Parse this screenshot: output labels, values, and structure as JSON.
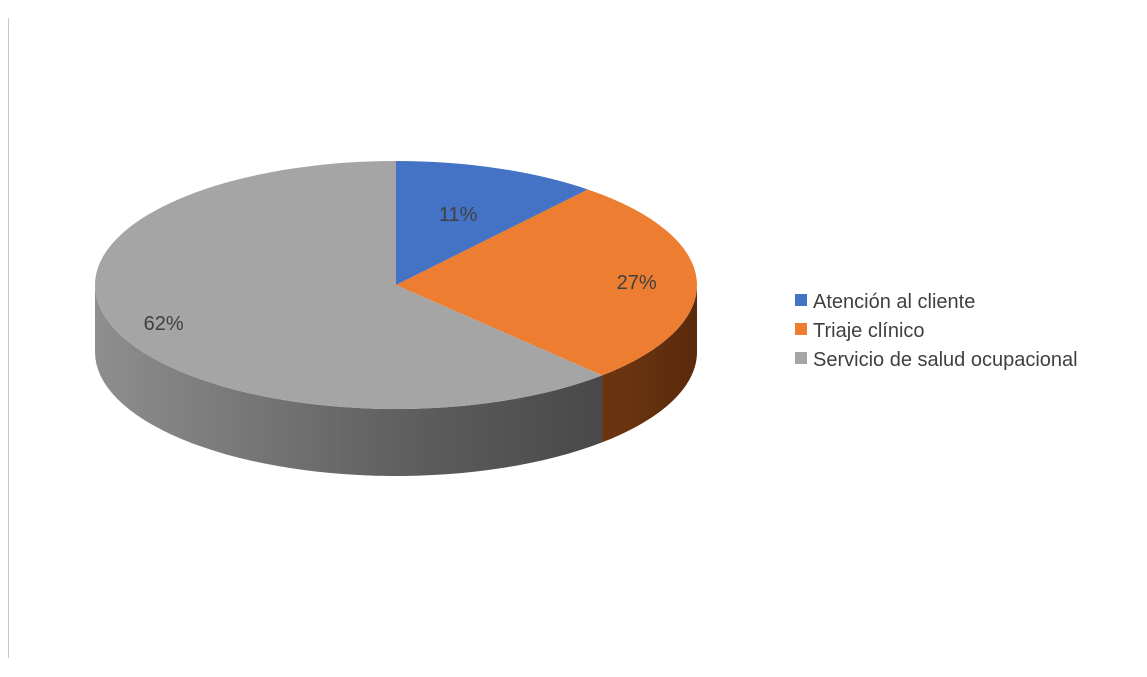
{
  "chart_data": {
    "type": "pie",
    "style": "3d",
    "start_angle_deg": 0,
    "direction": "clockwise",
    "labels_format": "percent",
    "legend_position": "right",
    "categories": [
      "Atención al cliente",
      "Triaje clínico",
      "Servicio de salud ocupacional"
    ],
    "values": [
      11,
      27,
      62
    ],
    "value_labels": [
      "11%",
      "27%",
      "62%"
    ],
    "colors": [
      "#4472C4",
      "#ED7D31",
      "#A5A5A5"
    ],
    "side_colors": [
      "#2F5597",
      "#843C0C",
      "#5A5A5A"
    ]
  }
}
